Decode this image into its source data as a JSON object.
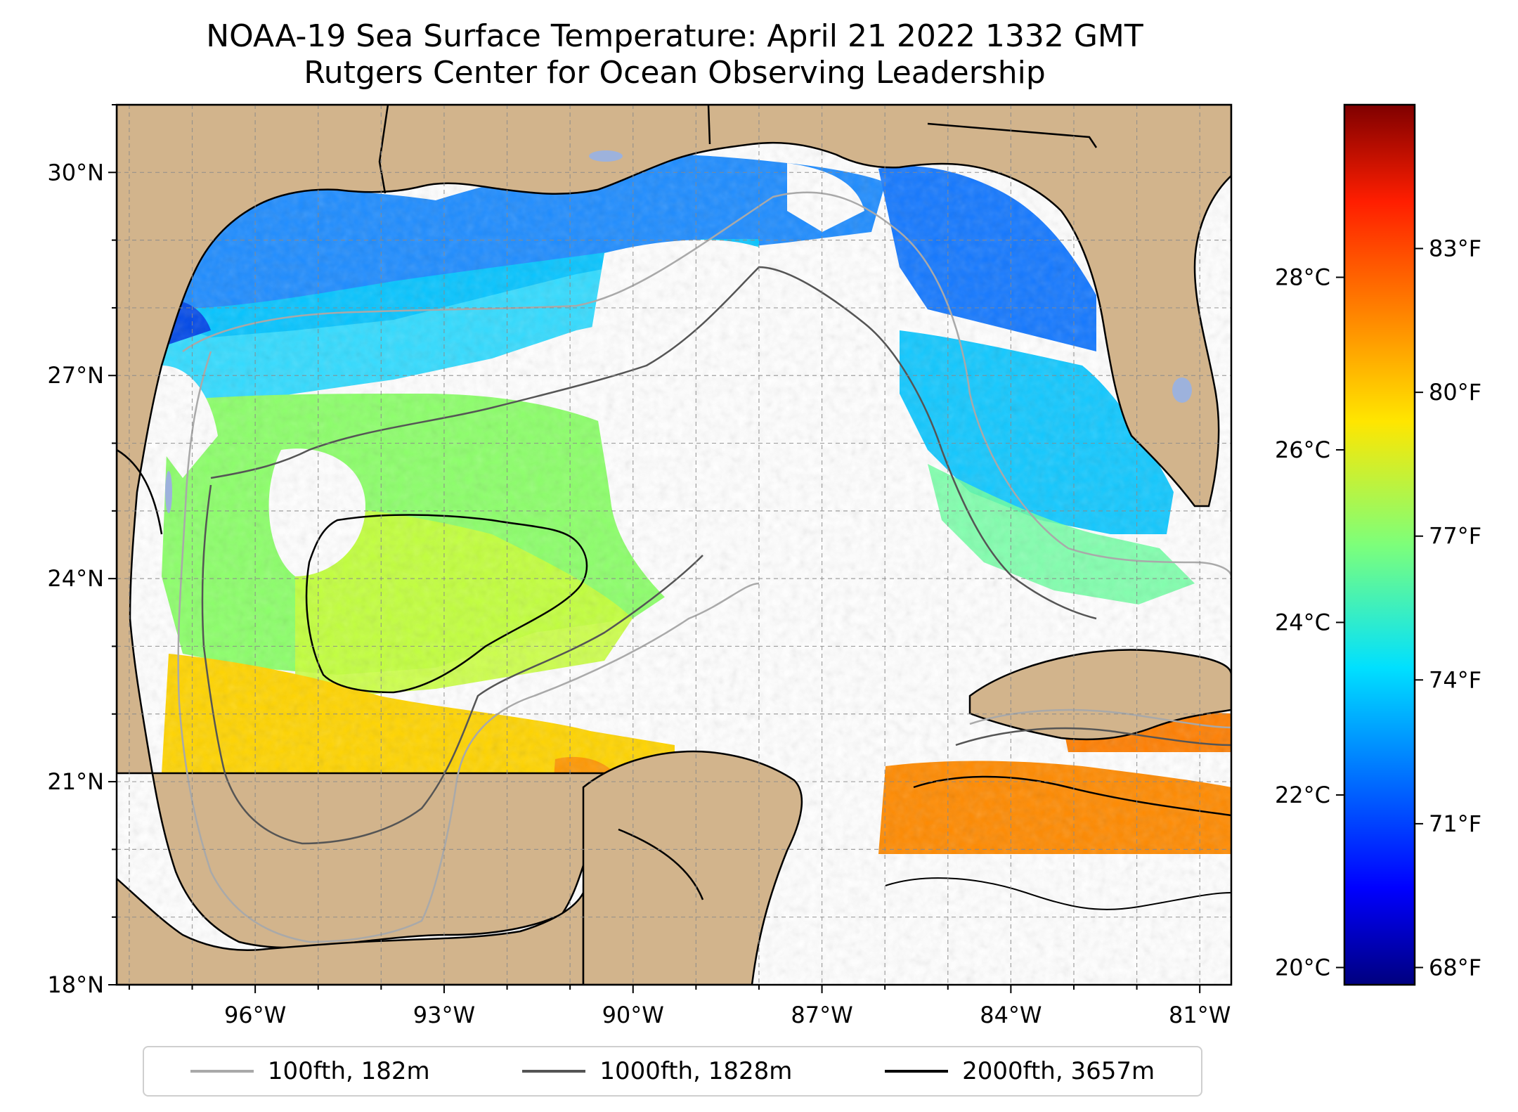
{
  "title": {
    "line1": "NOAA-19 Sea Surface Temperature: April 21 2022 1332 GMT",
    "line2": "Rutgers Center for Ocean Observing Leadership"
  },
  "map": {
    "lon_range": [
      -98.2,
      -80.5
    ],
    "lat_range": [
      18.0,
      31.0
    ],
    "lon_ticks": [
      {
        "value": -96,
        "label": "96°W"
      },
      {
        "value": -93,
        "label": "93°W"
      },
      {
        "value": -90,
        "label": "90°W"
      },
      {
        "value": -87,
        "label": "87°W"
      },
      {
        "value": -84,
        "label": "84°W"
      },
      {
        "value": -81,
        "label": "81°W"
      }
    ],
    "lat_ticks": [
      {
        "value": 18,
        "label": "18°N"
      },
      {
        "value": 21,
        "label": "21°N"
      },
      {
        "value": 24,
        "label": "24°N"
      },
      {
        "value": 27,
        "label": "27°N"
      },
      {
        "value": 30,
        "label": "30°N"
      }
    ],
    "grid": true,
    "colors": {
      "land": "#d2b48c",
      "no_data": "#ffffff",
      "inland_water": "#9db2dc",
      "coast": "#000000"
    }
  },
  "colorbar": {
    "colormap": "jet",
    "range_c": [
      19.8,
      30.0
    ],
    "celsius_ticks": [
      {
        "value": 20,
        "label": "20°C"
      },
      {
        "value": 22,
        "label": "22°C"
      },
      {
        "value": 24,
        "label": "24°C"
      },
      {
        "value": 26,
        "label": "26°C"
      },
      {
        "value": 28,
        "label": "28°C"
      }
    ],
    "fahrenheit_ticks": [
      {
        "value": 68,
        "label": "68°F"
      },
      {
        "value": 71,
        "label": "71°F"
      },
      {
        "value": 74,
        "label": "74°F"
      },
      {
        "value": 77,
        "label": "77°F"
      },
      {
        "value": 80,
        "label": "80°F"
      },
      {
        "value": 83,
        "label": "83°F"
      }
    ]
  },
  "legend": {
    "placement": "bottom-center",
    "items": [
      {
        "label": "100fth, 182m",
        "color": "#a9a9a9"
      },
      {
        "label": "1000fth, 1828m",
        "color": "#555555"
      },
      {
        "label": "2000fth, 3657m",
        "color": "#000000"
      }
    ]
  }
}
